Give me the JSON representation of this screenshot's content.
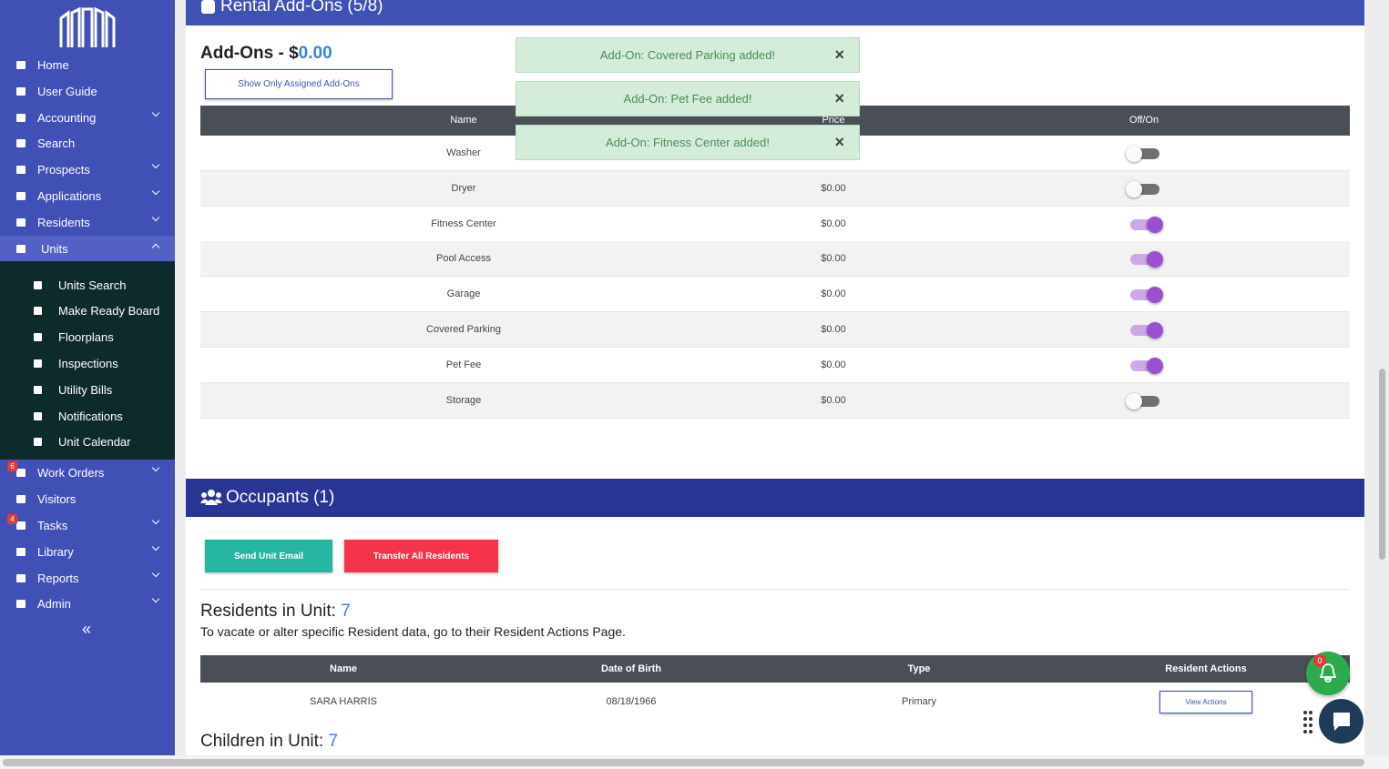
{
  "sidebar": {
    "nav": [
      {
        "label": "Home"
      },
      {
        "label": "User Guide"
      },
      {
        "label": "Accounting",
        "dropdown": true
      },
      {
        "label": "Search"
      },
      {
        "label": "Prospects",
        "dropdown": true
      },
      {
        "label": "Applications",
        "dropdown": true
      },
      {
        "label": "Residents",
        "dropdown": true
      },
      {
        "label": "Units",
        "dropdown": true,
        "expanded": true,
        "children": [
          "Units Search",
          "Make Ready Board",
          "Floorplans",
          "Inspections",
          "Utility Bills",
          "Notifications",
          "Unit Calendar"
        ]
      },
      {
        "label": "Work Orders",
        "dropdown": true,
        "badge": "6"
      },
      {
        "label": "Visitors"
      },
      {
        "label": "Tasks",
        "dropdown": true,
        "badge": "4"
      },
      {
        "label": "Library",
        "dropdown": true
      },
      {
        "label": "Reports",
        "dropdown": true
      },
      {
        "label": "Admin",
        "dropdown": true
      }
    ],
    "collapse": "«"
  },
  "addons": {
    "title": "Rental Add-Ons (5/8)",
    "heading": "Add-Ons - $",
    "amount": "0.00",
    "filter_button": "Show Only Assigned Add-Ons",
    "columns": [
      "Name",
      "Price",
      "Off/On"
    ],
    "rows": [
      {
        "name": "Washer",
        "price": null,
        "on": false
      },
      {
        "name": "Dryer",
        "price": "$0.00",
        "on": false
      },
      {
        "name": "Fitness Center",
        "price": "$0.00",
        "on": true
      },
      {
        "name": "Pool Access",
        "price": "$0.00",
        "on": true
      },
      {
        "name": "Garage",
        "price": "$0.00",
        "on": true
      },
      {
        "name": "Covered Parking",
        "price": "$0.00",
        "on": true
      },
      {
        "name": "Pet Fee",
        "price": "$0.00",
        "on": true
      },
      {
        "name": "Storage",
        "price": "$0.00",
        "on": false
      }
    ]
  },
  "toasts": {
    "close": "×",
    "messages": [
      "Add-On: Covered Parking added!",
      "Add-On: Pet Fee added!",
      "Add-On: Fitness Center added!"
    ]
  },
  "occupants": {
    "title": "Occupants (1)",
    "email_button": "Send Unit Email",
    "transfer_button": "Transfer All Residents",
    "residents_heading": "Residents in Unit: ",
    "residents_count": "7",
    "note": "To vacate or alter specific Resident data, go to their Resident Actions Page.",
    "columns": [
      "Name",
      "Date of Birth",
      "Type",
      "Resident Actions"
    ],
    "rows": [
      {
        "name": "SARA HARRIS",
        "dob": "08/18/1966",
        "type": "Primary",
        "action": "View Actions"
      }
    ],
    "children_heading": "Children in Unit: ",
    "children_count": "7"
  },
  "notifications": {
    "badge": "0"
  }
}
